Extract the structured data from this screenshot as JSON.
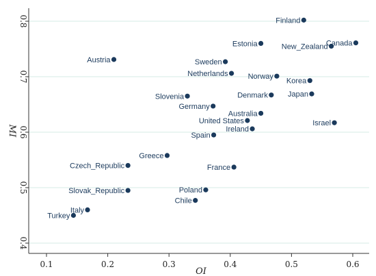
{
  "chart_data": {
    "type": "scatter",
    "xlabel": "OI",
    "ylabel": "MI",
    "xlim": [
      0.1,
      0.6
    ],
    "ylim": [
      0.4,
      0.8
    ],
    "xticks": [
      "0.1",
      "0.2",
      "0.3",
      "0.4",
      "0.5",
      "0.6"
    ],
    "yticks": [
      "0.4",
      "0.5",
      "0.6",
      "0.7",
      "0.8"
    ],
    "grid": "horizontal",
    "point_color": "#1b3a5c",
    "points": [
      {
        "label": "Finland",
        "x": 0.52,
        "y": 0.802
      },
      {
        "label": "Estonia",
        "x": 0.45,
        "y": 0.76
      },
      {
        "label": "Canada",
        "x": 0.605,
        "y": 0.761
      },
      {
        "label": "New_Zealand",
        "x": 0.565,
        "y": 0.755
      },
      {
        "label": "Austria",
        "x": 0.21,
        "y": 0.731
      },
      {
        "label": "Sweden",
        "x": 0.392,
        "y": 0.727
      },
      {
        "label": "Netherlands",
        "x": 0.402,
        "y": 0.706
      },
      {
        "label": "Norway",
        "x": 0.476,
        "y": 0.701
      },
      {
        "label": "Korea",
        "x": 0.53,
        "y": 0.693
      },
      {
        "label": "Slovenia",
        "x": 0.33,
        "y": 0.665
      },
      {
        "label": "Denmark",
        "x": 0.467,
        "y": 0.667
      },
      {
        "label": "Japan",
        "x": 0.533,
        "y": 0.669
      },
      {
        "label": "Germany",
        "x": 0.372,
        "y": 0.647
      },
      {
        "label": "Australia",
        "x": 0.45,
        "y": 0.634
      },
      {
        "label": "United States",
        "x": 0.428,
        "y": 0.621
      },
      {
        "label": "Israel",
        "x": 0.57,
        "y": 0.617
      },
      {
        "label": "Ireland",
        "x": 0.436,
        "y": 0.606
      },
      {
        "label": "Spain",
        "x": 0.373,
        "y": 0.595
      },
      {
        "label": "Greece",
        "x": 0.297,
        "y": 0.558
      },
      {
        "label": "Czech_Republic",
        "x": 0.233,
        "y": 0.54
      },
      {
        "label": "France",
        "x": 0.406,
        "y": 0.537
      },
      {
        "label": "Slovak_Republic",
        "x": 0.233,
        "y": 0.495
      },
      {
        "label": "Poland",
        "x": 0.36,
        "y": 0.496
      },
      {
        "label": "Chile",
        "x": 0.343,
        "y": 0.477
      },
      {
        "label": "Italy",
        "x": 0.167,
        "y": 0.46
      },
      {
        "label": "Turkey",
        "x": 0.144,
        "y": 0.45
      }
    ]
  }
}
